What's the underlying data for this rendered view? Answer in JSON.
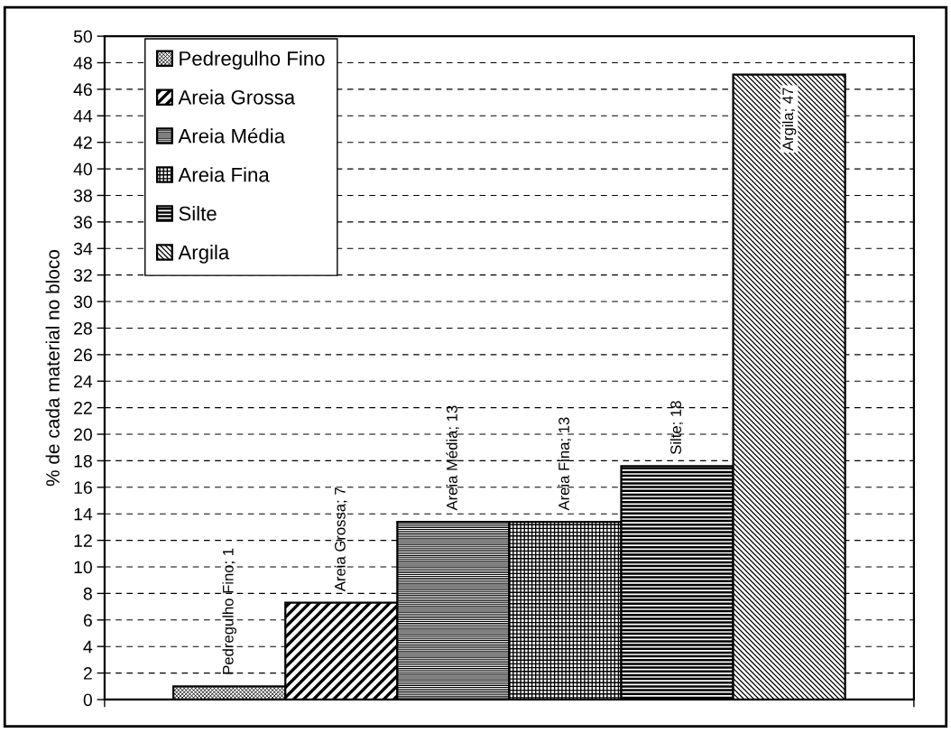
{
  "chart_data": {
    "type": "bar",
    "ylabel": "% de cada material no bloco",
    "categories": [
      null
    ],
    "series": [
      {
        "name": "Pedregulho Fino",
        "color": "#000000",
        "values": [
          1.0
        ],
        "value_labels": [
          "Pedregulho Fino; 1"
        ]
      },
      {
        "name": "Areia Grossa",
        "color": "#000000",
        "values": [
          7.3
        ],
        "value_labels": [
          "Areia Grossa; 7"
        ]
      },
      {
        "name": "Areia Média",
        "color": "#000000",
        "values": [
          13.4
        ],
        "value_labels": [
          "Areia Média; 13"
        ]
      },
      {
        "name": "Areia Fina",
        "color": "#000000",
        "values": [
          13.4
        ],
        "value_labels": [
          "Areia Fina; 13"
        ]
      },
      {
        "name": "Silte",
        "color": "#000000",
        "values": [
          17.6
        ],
        "value_labels": [
          "Silte; 18"
        ]
      },
      {
        "name": "Argila",
        "color": "#000000",
        "values": [
          47.1
        ],
        "value_labels": [
          "Argila; 47"
        ]
      }
    ],
    "ylim": [
      0,
      50
    ],
    "yticks": [
      0,
      2,
      4,
      6,
      8,
      10,
      12,
      14,
      16,
      18,
      20,
      22,
      24,
      26,
      28,
      30,
      32,
      34,
      36,
      38,
      40,
      42,
      44,
      46,
      48,
      50
    ],
    "grid": "y",
    "legend": "top left",
    "tick_labels": "y"
  }
}
